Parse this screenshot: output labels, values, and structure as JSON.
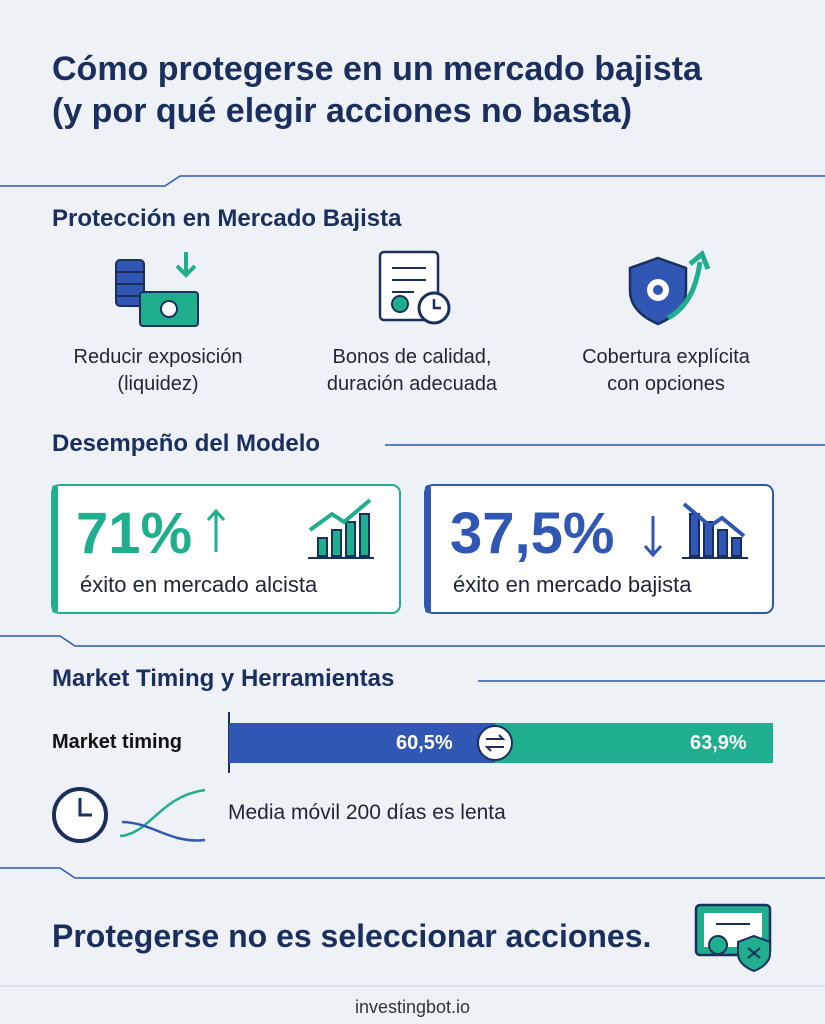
{
  "header": {
    "title_line1": "Cómo protegerse en un mercado bajista",
    "title_line2": "(y por qué elegir acciones no basta)"
  },
  "protection": {
    "heading": "Protección en Mercado Bajista",
    "items": [
      {
        "line1": "Reducir exposición",
        "line2": "(liquidez)"
      },
      {
        "line1": "Bonos de calidad,",
        "line2": "duración adecuada"
      },
      {
        "line1": "Cobertura explícita",
        "line2": "con opciones"
      }
    ]
  },
  "performance": {
    "heading": "Desempeño del Modelo",
    "cards": [
      {
        "value": "71%",
        "caption": "éxito en mercado alcista"
      },
      {
        "value": "37,5%",
        "caption": "éxito en mercado bajista"
      }
    ]
  },
  "timing": {
    "heading": "Market Timing y Herramientas",
    "bar_label": "Market timing",
    "left_value": "60,5%",
    "right_value": "63,9%",
    "note": "Media móvil 200 días es lenta"
  },
  "footer": {
    "conclusion": "Protegerse no es seleccionar acciones.",
    "site": "investingbot.io"
  }
}
